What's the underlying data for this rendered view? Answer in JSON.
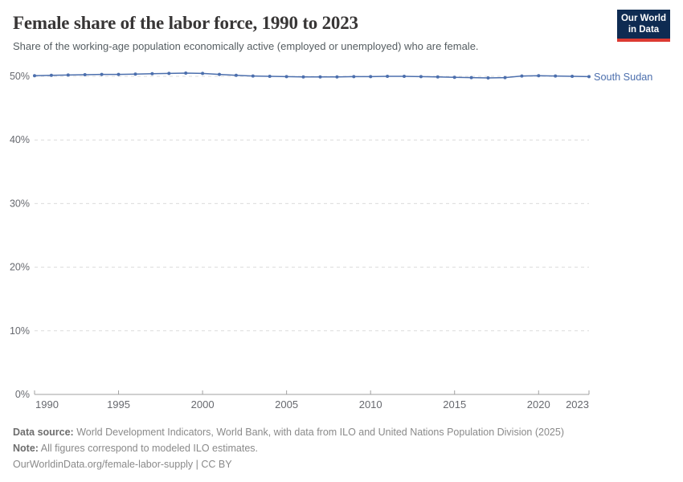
{
  "header": {
    "title": "Female share of the labor force, 1990 to 2023",
    "subtitle": "Share of the working-age population economically active (employed or unemployed) who are female."
  },
  "logo": {
    "line1": "Our World",
    "line2": "in Data",
    "bg_color": "#0e2b52",
    "accent_color": "#dc3a32"
  },
  "chart_data": {
    "type": "line",
    "title": "Female share of the labor force, 1990 to 2023",
    "x": [
      1990,
      1991,
      1992,
      1993,
      1994,
      1995,
      1996,
      1997,
      1998,
      1999,
      2000,
      2001,
      2002,
      2003,
      2004,
      2005,
      2006,
      2007,
      2008,
      2009,
      2010,
      2011,
      2012,
      2013,
      2014,
      2015,
      2016,
      2017,
      2018,
      2019,
      2020,
      2021,
      2022,
      2023
    ],
    "series": [
      {
        "name": "South Sudan",
        "color": "#4c6fad",
        "values": [
          50.1,
          50.15,
          50.2,
          50.25,
          50.3,
          50.3,
          50.35,
          50.4,
          50.45,
          50.5,
          50.45,
          50.3,
          50.15,
          50.05,
          50.0,
          49.95,
          49.9,
          49.9,
          49.9,
          49.95,
          49.95,
          50.0,
          50.0,
          49.95,
          49.9,
          49.85,
          49.8,
          49.75,
          49.8,
          50.05,
          50.1,
          50.05,
          50.0,
          49.95
        ]
      }
    ],
    "xlabel": "",
    "ylabel": "",
    "ylim": [
      0,
      52
    ],
    "yticks": [
      0,
      10,
      20,
      30,
      40,
      50
    ],
    "ytick_suffix": "%",
    "xticks": [
      1990,
      1995,
      2000,
      2005,
      2010,
      2015,
      2020,
      2023
    ],
    "grid": "horizontal-dashed",
    "legend_position": "right-of-line",
    "markers": true
  },
  "footer": {
    "source_label": "Data source:",
    "source_text": " World Development Indicators, World Bank, with data from ILO and United Nations Population Division (2025)",
    "note_label": "Note:",
    "note_text": " All figures correspond to modeled ILO estimates.",
    "url_text": "OurWorldinData.org/female-labor-supply | CC BY"
  },
  "colors": {
    "line": "#4c6fad",
    "axis_text": "#67696f",
    "grid": "#dcdcdc",
    "axis_line": "#a1a1a1",
    "title": "#383636",
    "subtitle": "#555d61",
    "footer": "#8a8a8a"
  }
}
